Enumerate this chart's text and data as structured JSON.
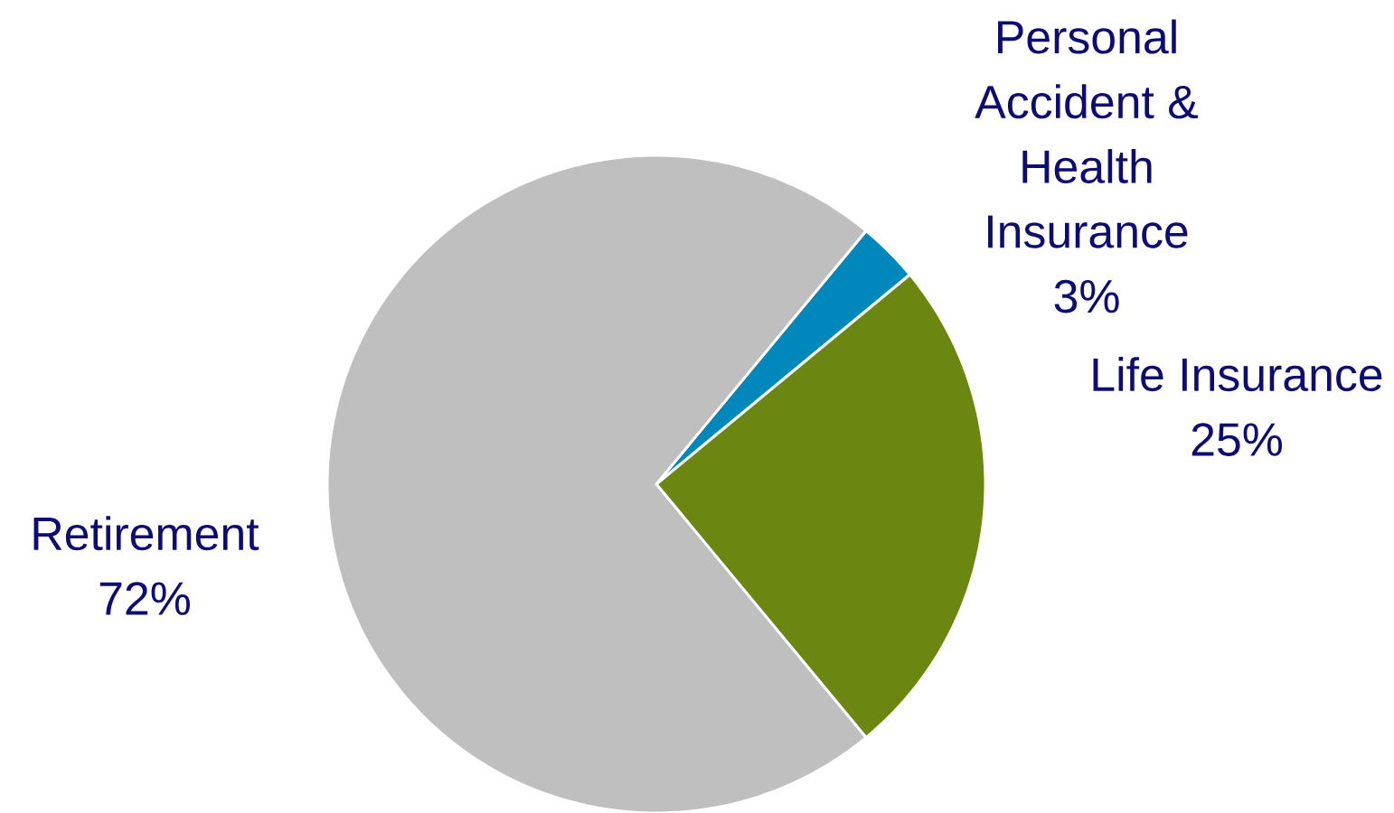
{
  "chart_data": {
    "type": "pie",
    "categories": [
      "Personal Accident & Health Insurance",
      "Life Insurance",
      "Retirement"
    ],
    "values": [
      3,
      25,
      72
    ],
    "colors": [
      "#0088bd",
      "#6b8712",
      "#bfbfbf"
    ],
    "value_labels": [
      "3%",
      "25%",
      "72%"
    ]
  }
}
